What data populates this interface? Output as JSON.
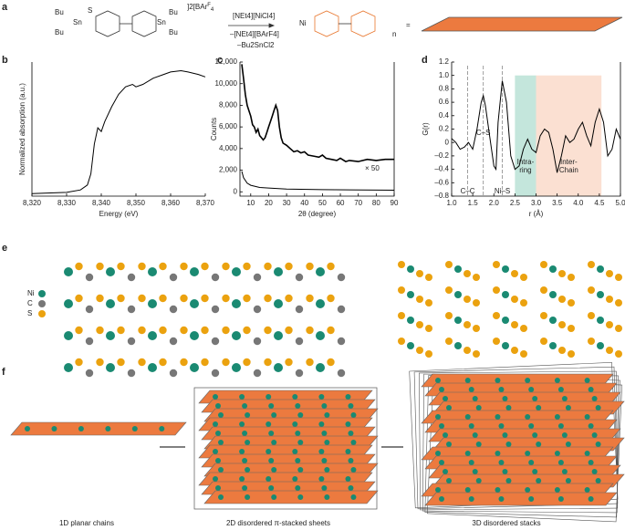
{
  "panel_labels": [
    "a",
    "b",
    "c",
    "d",
    "e",
    "f"
  ],
  "scheme": {
    "counter_ion": "2[BAr",
    "counter_ion_sub": "F",
    "counter_ion_tail": "4",
    "counter_ion_charge": "]",
    "substituents": [
      "Bu",
      "Bu",
      "Bu",
      "Bu"
    ],
    "tin": [
      "Sn",
      "Sn"
    ],
    "sulfur": "S",
    "reagent": "[NEt4][NiCl4]",
    "byproduct_1": "–[NEt4][BArF4]",
    "byproduct_2": "–Bu2SnCl2",
    "metal": "Ni",
    "repeat": "n",
    "equals": "="
  },
  "chart_data": [
    {
      "type": "line",
      "xlabel": "Energy (eV)",
      "ylabel": "Normalized absorption (a.u.)",
      "xlim": [
        8320,
        8370
      ],
      "ylim": [
        0,
        1.08
      ],
      "xticks": [
        {
          "value": 8320,
          "label": "8,320"
        },
        {
          "value": 8330,
          "label": "8,330"
        },
        {
          "value": 8340,
          "label": "8,340"
        },
        {
          "value": 8350,
          "label": "8,350"
        },
        {
          "value": 8360,
          "label": "8,360"
        },
        {
          "value": 8370,
          "label": "8,370"
        }
      ],
      "series": [
        {
          "color": "#000000",
          "x": [
            8320,
            8330,
            8334,
            8336,
            8337,
            8338,
            8339,
            8340,
            8341,
            8343,
            8345,
            8347,
            8349,
            8350,
            8352,
            8355,
            8358,
            8360,
            8363,
            8365,
            8368,
            8370
          ],
          "values": [
            0.02,
            0.03,
            0.05,
            0.09,
            0.18,
            0.42,
            0.55,
            0.52,
            0.6,
            0.72,
            0.82,
            0.88,
            0.9,
            0.88,
            0.9,
            0.95,
            0.98,
            1.0,
            1.01,
            1.0,
            0.98,
            0.96
          ]
        }
      ]
    },
    {
      "type": "line",
      "xlabel": "2θ (degree)",
      "ylabel": "Counts",
      "annotation": "× 50",
      "xlim": [
        4,
        90
      ],
      "ylim": [
        -400,
        12000
      ],
      "xticks": [
        10,
        20,
        30,
        40,
        50,
        60,
        70,
        80,
        90
      ],
      "yticks": [
        0,
        {
          "value": 2000,
          "label": "2,000"
        },
        {
          "value": 4000,
          "label": "4,000"
        },
        {
          "value": 6000,
          "label": "6,000"
        },
        {
          "value": 8000,
          "label": "8,000"
        },
        {
          "value": 10000,
          "label": "10,000"
        },
        {
          "value": 12000,
          "label": "12,000"
        }
      ],
      "series": [
        {
          "color": "#000000",
          "x": [
            5,
            6,
            7,
            8,
            9,
            10,
            11,
            12,
            13,
            14,
            15,
            16,
            17,
            18,
            19,
            20,
            21,
            22,
            23,
            24,
            25,
            26,
            27,
            28,
            30,
            32,
            34,
            36,
            38,
            40,
            42,
            45,
            48,
            50,
            52,
            55,
            58,
            60,
            63,
            65,
            70,
            75,
            80,
            85,
            90
          ],
          "values": [
            11800,
            10500,
            9000,
            8000,
            7500,
            7000,
            6200,
            6000,
            5500,
            5800,
            5200,
            5000,
            4800,
            5000,
            5500,
            6000,
            6500,
            7000,
            7500,
            8000,
            7500,
            6000,
            5000,
            4500,
            4300,
            4000,
            3700,
            3800,
            3600,
            3700,
            3400,
            3300,
            3200,
            3400,
            3100,
            3000,
            2900,
            3100,
            2800,
            2900,
            2800,
            3000,
            2900,
            3000,
            3000
          ]
        },
        {
          "color": "#000000",
          "x": [
            5,
            6,
            8,
            10,
            15,
            20,
            30,
            50,
            90
          ],
          "values": [
            1900,
            1300,
            800,
            600,
            400,
            350,
            250,
            200,
            150
          ]
        }
      ]
    },
    {
      "type": "line",
      "xlabel": "r (Å)",
      "ylabel": "G(r)",
      "xlim": [
        1.0,
        5.0
      ],
      "ylim": [
        -0.8,
        1.2
      ],
      "xticks": [
        {
          "value": 1,
          "label": "1.0"
        },
        1.5,
        {
          "value": 2,
          "label": "2.0"
        },
        2.5,
        {
          "value": 3,
          "label": "3.0"
        },
        3.5,
        {
          "value": 4,
          "label": "4.0"
        },
        4.5,
        {
          "value": 5,
          "label": "5.0"
        }
      ],
      "yticks": [
        {
          "value": -0.8,
          "label": "–0.8"
        },
        {
          "value": -0.6,
          "label": "–0.6"
        },
        {
          "value": -0.4,
          "label": "–0.4"
        },
        {
          "value": -0.2,
          "label": "–0.2"
        },
        0,
        0.2,
        0.4,
        0.6,
        0.8,
        {
          "value": 1,
          "label": "1.0"
        },
        1.2
      ],
      "regions": [
        {
          "lines": [
            "Intra-",
            "ring"
          ],
          "xlim": [
            2.5,
            3.0
          ],
          "color": "#c4e6dc"
        },
        {
          "lines": [
            "Inter-",
            "Chain"
          ],
          "xlim": [
            3.0,
            4.55
          ],
          "color": "#fbe0d2"
        }
      ],
      "reference_lines": [
        {
          "x": 1.38,
          "label": "C–C"
        },
        {
          "x": 1.75,
          "label": "C–S"
        },
        {
          "x": 2.2,
          "label": "Ni–S"
        }
      ],
      "series": [
        {
          "color": "#000000",
          "x": [
            1.0,
            1.1,
            1.2,
            1.3,
            1.4,
            1.5,
            1.6,
            1.7,
            1.75,
            1.8,
            1.9,
            2.0,
            2.05,
            2.1,
            2.2,
            2.3,
            2.4,
            2.5,
            2.6,
            2.7,
            2.8,
            2.9,
            3.0,
            3.1,
            3.2,
            3.3,
            3.4,
            3.5,
            3.6,
            3.7,
            3.8,
            3.9,
            4.0,
            4.1,
            4.2,
            4.3,
            4.4,
            4.5,
            4.6,
            4.7,
            4.8,
            4.9,
            5.0
          ],
          "values": [
            0.06,
            0.0,
            -0.1,
            -0.07,
            0.0,
            -0.1,
            0.2,
            0.6,
            0.7,
            0.55,
            0.1,
            -0.35,
            -0.4,
            0.3,
            0.92,
            0.6,
            -0.2,
            -0.4,
            -0.35,
            -0.1,
            0.05,
            -0.1,
            -0.15,
            0.1,
            0.2,
            0.15,
            -0.1,
            -0.45,
            -0.2,
            0.1,
            0.0,
            0.05,
            0.2,
            0.3,
            0.1,
            -0.05,
            0.3,
            0.5,
            0.3,
            -0.2,
            -0.1,
            0.2,
            0.05
          ]
        }
      ]
    }
  ],
  "legend_e": [
    {
      "label": "Ni",
      "color": "#1a8a72"
    },
    {
      "label": "C",
      "color": "#777777"
    },
    {
      "label": "S",
      "color": "#eba20f"
    }
  ],
  "captions_f": [
    "1D planar chains",
    "2D disordered π-stacked sheets",
    "3D disordered stacks"
  ]
}
